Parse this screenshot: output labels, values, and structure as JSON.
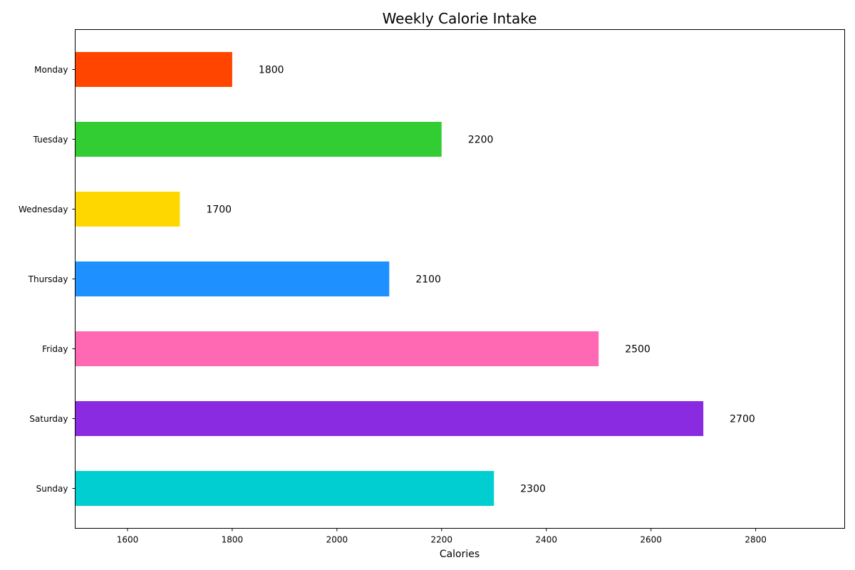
{
  "chart_data": {
    "type": "bar",
    "orientation": "horizontal",
    "title": "Weekly Calorie Intake",
    "xlabel": "Calories",
    "ylabel": "",
    "categories": [
      "Monday",
      "Tuesday",
      "Wednesday",
      "Thursday",
      "Friday",
      "Saturday",
      "Sunday"
    ],
    "values": [
      1800,
      2200,
      1700,
      2100,
      2500,
      2700,
      2300
    ],
    "data_labels": [
      "1800",
      "2200",
      "1700",
      "2100",
      "2500",
      "2700",
      "2300"
    ],
    "colors": [
      "#ff4500",
      "#32cd32",
      "#ffd700",
      "#1e90ff",
      "#ff69b4",
      "#8a2be2",
      "#00ced1"
    ],
    "xlim": [
      1500,
      2970
    ],
    "xticks": [
      1600,
      1800,
      2000,
      2200,
      2400,
      2600,
      2800
    ],
    "xtick_labels": [
      "1600",
      "1800",
      "2000",
      "2200",
      "2400",
      "2600",
      "2800"
    ],
    "grid": false,
    "legend": false
  }
}
